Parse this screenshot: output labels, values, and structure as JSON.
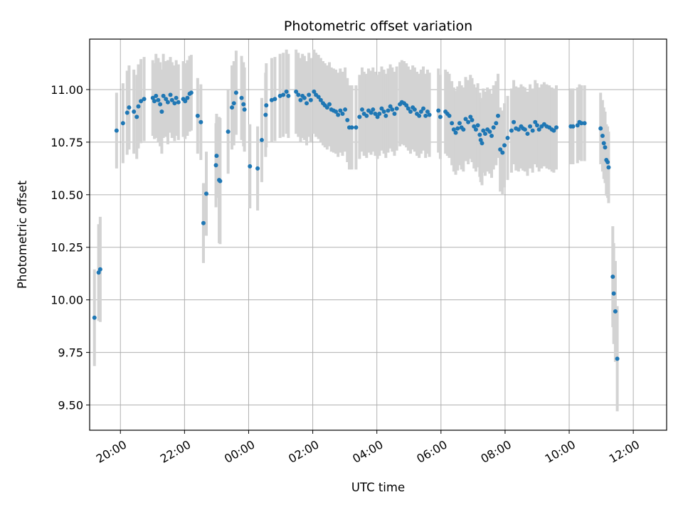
{
  "chart_data": {
    "type": "scatter",
    "title": "Photometric offset variation",
    "xlabel": "UTC time",
    "ylabel": "Photometric offset",
    "x_unit": "hours since 00:00 UTC (negative = previous evening)",
    "xlim": [
      -4.96,
      13.04
    ],
    "ylim": [
      9.38,
      11.24
    ],
    "grid": true,
    "x_ticks": [
      {
        "value": -4,
        "label": "20:00"
      },
      {
        "value": -2,
        "label": "22:00"
      },
      {
        "value": 0,
        "label": "00:00"
      },
      {
        "value": 2,
        "label": "02:00"
      },
      {
        "value": 4,
        "label": "04:00"
      },
      {
        "value": 6,
        "label": "06:00"
      },
      {
        "value": 8,
        "label": "08:00"
      },
      {
        "value": 10,
        "label": "10:00"
      },
      {
        "value": 12,
        "label": "12:00"
      }
    ],
    "y_ticks": [
      {
        "value": 9.5,
        "label": "9.50"
      },
      {
        "value": 9.75,
        "label": "9.75"
      },
      {
        "value": 10.0,
        "label": "10.00"
      },
      {
        "value": 10.25,
        "label": "10.25"
      },
      {
        "value": 10.5,
        "label": "10.50"
      },
      {
        "value": 10.75,
        "label": "10.75"
      },
      {
        "value": 11.0,
        "label": "11.00"
      }
    ],
    "colors": {
      "points": "#1f77b4",
      "errorbars": "#d3d3d3",
      "grid": "#b0b0b0",
      "axes": "#000000"
    },
    "series": [
      {
        "name": "offset",
        "points": [
          [
            -4.81,
            9.915,
            0.23
          ],
          [
            -4.68,
            10.13,
            0.23
          ],
          [
            -4.63,
            10.145,
            0.25
          ],
          [
            -4.12,
            10.805,
            0.18
          ],
          [
            -3.92,
            10.84,
            0.19
          ],
          [
            -3.79,
            10.89,
            0.2
          ],
          [
            -3.73,
            10.915,
            0.2
          ],
          [
            -3.58,
            10.895,
            0.2
          ],
          [
            -3.49,
            10.87,
            0.2
          ],
          [
            -3.44,
            10.92,
            0.2
          ],
          [
            -3.36,
            10.945,
            0.2
          ],
          [
            -3.26,
            10.955,
            0.2
          ],
          [
            -2.99,
            10.96,
            0.18
          ],
          [
            -2.94,
            10.945,
            0.18
          ],
          [
            -2.89,
            10.97,
            0.2
          ],
          [
            -2.82,
            10.95,
            0.2
          ],
          [
            -2.76,
            10.93,
            0.2
          ],
          [
            -2.71,
            10.895,
            0.2
          ],
          [
            -2.66,
            10.97,
            0.2
          ],
          [
            -2.58,
            10.955,
            0.18
          ],
          [
            -2.52,
            10.94,
            0.2
          ],
          [
            -2.44,
            10.975,
            0.18
          ],
          [
            -2.39,
            10.95,
            0.18
          ],
          [
            -2.31,
            10.935,
            0.18
          ],
          [
            -2.26,
            10.96,
            0.18
          ],
          [
            -2.19,
            10.94,
            0.18
          ],
          [
            -2.04,
            10.955,
            0.18
          ],
          [
            -1.98,
            10.945,
            0.18
          ],
          [
            -1.91,
            10.96,
            0.18
          ],
          [
            -1.84,
            10.98,
            0.18
          ],
          [
            -1.79,
            10.985,
            0.18
          ],
          [
            -1.59,
            10.875,
            0.18
          ],
          [
            -1.49,
            10.845,
            0.18
          ],
          [
            -1.41,
            10.365,
            0.19
          ],
          [
            -1.32,
            10.505,
            0.2
          ],
          [
            -1.02,
            10.64,
            0.2
          ],
          [
            -1.0,
            10.685,
            0.2
          ],
          [
            -0.92,
            10.57,
            0.3
          ],
          [
            -0.89,
            10.565,
            0.3
          ],
          [
            -0.64,
            10.8,
            0.2
          ],
          [
            -0.52,
            10.915,
            0.2
          ],
          [
            -0.46,
            10.935,
            0.2
          ],
          [
            -0.39,
            10.985,
            0.2
          ],
          [
            -0.22,
            10.96,
            0.2
          ],
          [
            -0.16,
            10.93,
            0.2
          ],
          [
            -0.13,
            10.905,
            0.2
          ],
          [
            0.04,
            10.635,
            0.2
          ],
          [
            0.28,
            10.625,
            0.2
          ],
          [
            0.41,
            10.76,
            0.2
          ],
          [
            0.53,
            10.88,
            0.2
          ],
          [
            0.55,
            10.925,
            0.2
          ],
          [
            0.72,
            10.95,
            0.2
          ],
          [
            0.82,
            10.955,
            0.2
          ],
          [
            0.98,
            10.97,
            0.2
          ],
          [
            1.08,
            10.975,
            0.2
          ],
          [
            1.18,
            10.99,
            0.2
          ],
          [
            1.24,
            10.97,
            0.2
          ],
          [
            1.48,
            10.99,
            0.2
          ],
          [
            1.55,
            10.975,
            0.2
          ],
          [
            1.62,
            10.95,
            0.2
          ],
          [
            1.68,
            10.97,
            0.2
          ],
          [
            1.74,
            10.96,
            0.2
          ],
          [
            1.81,
            10.935,
            0.2
          ],
          [
            1.88,
            10.975,
            0.2
          ],
          [
            1.94,
            10.95,
            0.2
          ],
          [
            2.04,
            10.99,
            0.2
          ],
          [
            2.1,
            10.975,
            0.2
          ],
          [
            2.18,
            10.965,
            0.2
          ],
          [
            2.25,
            10.95,
            0.2
          ],
          [
            2.32,
            10.935,
            0.2
          ],
          [
            2.38,
            10.925,
            0.2
          ],
          [
            2.45,
            10.915,
            0.2
          ],
          [
            2.52,
            10.93,
            0.2
          ],
          [
            2.58,
            10.905,
            0.2
          ],
          [
            2.65,
            10.9,
            0.2
          ],
          [
            2.72,
            10.895,
            0.2
          ],
          [
            2.79,
            10.88,
            0.2
          ],
          [
            2.86,
            10.9,
            0.2
          ],
          [
            2.93,
            10.885,
            0.2
          ],
          [
            3.01,
            10.905,
            0.2
          ],
          [
            3.08,
            10.855,
            0.2
          ],
          [
            3.14,
            10.82,
            0.2
          ],
          [
            3.22,
            10.82,
            0.2
          ],
          [
            3.35,
            10.82,
            0.2
          ],
          [
            3.46,
            10.87,
            0.2
          ],
          [
            3.54,
            10.905,
            0.2
          ],
          [
            3.6,
            10.885,
            0.2
          ],
          [
            3.68,
            10.875,
            0.2
          ],
          [
            3.74,
            10.9,
            0.2
          ],
          [
            3.82,
            10.89,
            0.2
          ],
          [
            3.88,
            10.905,
            0.2
          ],
          [
            3.95,
            10.885,
            0.2
          ],
          [
            4.02,
            10.87,
            0.2
          ],
          [
            4.08,
            10.885,
            0.2
          ],
          [
            4.15,
            10.91,
            0.2
          ],
          [
            4.22,
            10.895,
            0.2
          ],
          [
            4.28,
            10.875,
            0.2
          ],
          [
            4.35,
            10.9,
            0.2
          ],
          [
            4.42,
            10.92,
            0.2
          ],
          [
            4.48,
            10.905,
            0.2
          ],
          [
            4.55,
            10.885,
            0.2
          ],
          [
            4.62,
            10.91,
            0.2
          ],
          [
            4.72,
            10.93,
            0.2
          ],
          [
            4.78,
            10.94,
            0.2
          ],
          [
            4.85,
            10.935,
            0.2
          ],
          [
            4.92,
            10.925,
            0.2
          ],
          [
            4.98,
            10.91,
            0.2
          ],
          [
            5.05,
            10.895,
            0.2
          ],
          [
            5.12,
            10.915,
            0.2
          ],
          [
            5.18,
            10.905,
            0.2
          ],
          [
            5.25,
            10.885,
            0.2
          ],
          [
            5.32,
            10.875,
            0.2
          ],
          [
            5.38,
            10.895,
            0.2
          ],
          [
            5.45,
            10.91,
            0.2
          ],
          [
            5.52,
            10.875,
            0.2
          ],
          [
            5.58,
            10.895,
            0.2
          ],
          [
            5.64,
            10.88,
            0.2
          ],
          [
            5.92,
            10.9,
            0.2
          ],
          [
            5.98,
            10.87,
            0.2
          ],
          [
            6.14,
            10.895,
            0.2
          ],
          [
            6.2,
            10.885,
            0.2
          ],
          [
            6.26,
            10.875,
            0.2
          ],
          [
            6.34,
            10.84,
            0.2
          ],
          [
            6.4,
            10.81,
            0.2
          ],
          [
            6.46,
            10.795,
            0.2
          ],
          [
            6.52,
            10.815,
            0.2
          ],
          [
            6.58,
            10.84,
            0.2
          ],
          [
            6.64,
            10.82,
            0.2
          ],
          [
            6.7,
            10.81,
            0.2
          ],
          [
            6.77,
            10.86,
            0.2
          ],
          [
            6.85,
            10.845,
            0.2
          ],
          [
            6.92,
            10.87,
            0.2
          ],
          [
            6.97,
            10.855,
            0.2
          ],
          [
            7.03,
            10.825,
            0.2
          ],
          [
            7.09,
            10.81,
            0.2
          ],
          [
            7.15,
            10.83,
            0.2
          ],
          [
            7.21,
            10.785,
            0.2
          ],
          [
            7.24,
            10.76,
            0.2
          ],
          [
            7.28,
            10.745,
            0.2
          ],
          [
            7.32,
            10.805,
            0.2
          ],
          [
            7.38,
            10.79,
            0.2
          ],
          [
            7.45,
            10.81,
            0.2
          ],
          [
            7.52,
            10.8,
            0.2
          ],
          [
            7.58,
            10.78,
            0.2
          ],
          [
            7.64,
            10.82,
            0.2
          ],
          [
            7.72,
            10.84,
            0.2
          ],
          [
            7.78,
            10.875,
            0.2
          ],
          [
            7.85,
            10.715,
            0.2
          ],
          [
            7.92,
            10.7,
            0.2
          ],
          [
            7.98,
            10.735,
            0.2
          ],
          [
            8.08,
            10.77,
            0.2
          ],
          [
            8.2,
            10.805,
            0.2
          ],
          [
            8.27,
            10.845,
            0.2
          ],
          [
            8.34,
            10.815,
            0.2
          ],
          [
            8.42,
            10.81,
            0.2
          ],
          [
            8.5,
            10.825,
            0.2
          ],
          [
            8.56,
            10.815,
            0.2
          ],
          [
            8.62,
            10.81,
            0.2
          ],
          [
            8.7,
            10.79,
            0.2
          ],
          [
            8.78,
            10.825,
            0.2
          ],
          [
            8.86,
            10.805,
            0.2
          ],
          [
            8.94,
            10.845,
            0.2
          ],
          [
            9.0,
            10.83,
            0.2
          ],
          [
            9.06,
            10.81,
            0.2
          ],
          [
            9.14,
            10.825,
            0.2
          ],
          [
            9.22,
            10.835,
            0.2
          ],
          [
            9.3,
            10.825,
            0.2
          ],
          [
            9.38,
            10.82,
            0.2
          ],
          [
            9.46,
            10.81,
            0.2
          ],
          [
            9.52,
            10.805,
            0.2
          ],
          [
            9.6,
            10.82,
            0.2
          ],
          [
            10.05,
            10.825,
            0.18
          ],
          [
            10.12,
            10.825,
            0.18
          ],
          [
            10.26,
            10.83,
            0.18
          ],
          [
            10.32,
            10.845,
            0.18
          ],
          [
            10.38,
            10.84,
            0.18
          ],
          [
            10.48,
            10.84,
            0.18
          ],
          [
            10.98,
            10.815,
            0.17
          ],
          [
            11.04,
            10.78,
            0.17
          ],
          [
            11.08,
            10.745,
            0.17
          ],
          [
            11.12,
            10.725,
            0.17
          ],
          [
            11.16,
            10.665,
            0.17
          ],
          [
            11.2,
            10.655,
            0.17
          ],
          [
            11.23,
            10.63,
            0.17
          ],
          [
            11.36,
            10.11,
            0.24
          ],
          [
            11.39,
            10.03,
            0.24
          ],
          [
            11.44,
            9.945,
            0.24
          ],
          [
            11.5,
            9.72,
            0.25
          ]
        ]
      }
    ]
  }
}
